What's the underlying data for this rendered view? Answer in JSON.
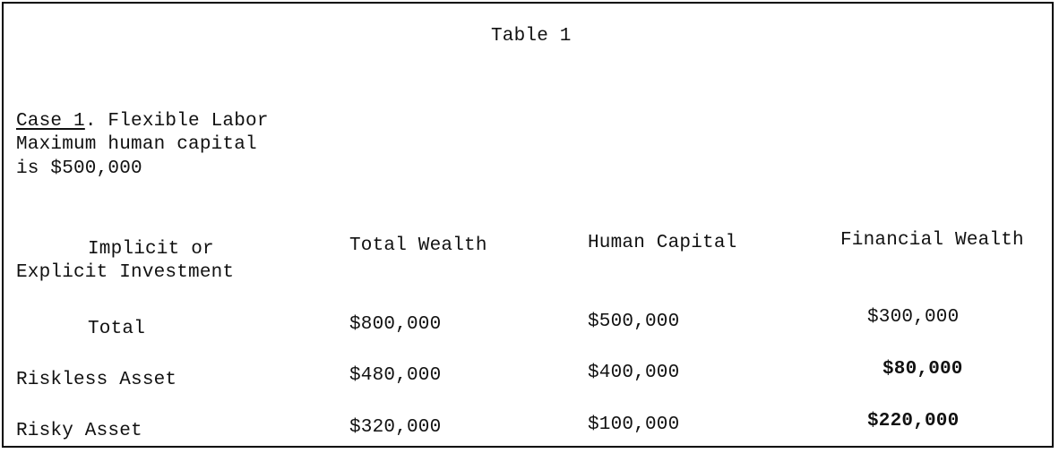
{
  "title": "Table 1",
  "case": {
    "label": "Case 1",
    "heading_rest": ". Flexible Labor",
    "line2": "Maximum human capital",
    "line3": "is $500,000"
  },
  "table": {
    "headers": {
      "col0_line1": "Implicit or",
      "col0_line2": "Explicit Investment",
      "total_wealth": "Total Wealth",
      "human_capital": "Human Capital",
      "financial_wealth": "Financial Wealth"
    },
    "rows": [
      {
        "label": "Total",
        "total_wealth": "$800,000",
        "human_capital": "$500,000",
        "financial_wealth": "$300,000"
      },
      {
        "label": "Riskless Asset",
        "total_wealth": "$480,000",
        "human_capital": "$400,000",
        "financial_wealth": "$80,000"
      },
      {
        "label": "Risky Asset",
        "total_wealth": "$320,000",
        "human_capital": "$100,000",
        "financial_wealth": "$220,000"
      }
    ]
  }
}
